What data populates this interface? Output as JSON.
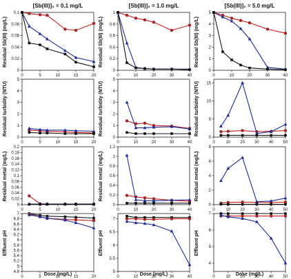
{
  "figure": {
    "column_titles": [
      "[Sb(III)]₀ = 0.1 mg/L",
      "[Sb(III)]₀ = 1.0 mg/L",
      "[Sb(III)]₀ = 5.0 mg/L"
    ],
    "row_ylabels": [
      "Residual Sb(III) (mg/L)",
      "Residual turbidity (NTU)",
      "Residual metal (mg/L)",
      "Effluent pH"
    ],
    "xlabel": "Dose (mg/L)"
  },
  "chart_data": [
    {
      "type": "line",
      "panel": "r0c0",
      "xlim": [
        0,
        20
      ],
      "ylim": [
        0,
        0.1
      ],
      "xticks": [
        0,
        5,
        10,
        15,
        20
      ],
      "yticks": [
        0,
        0.02,
        0.04,
        0.06,
        0.08,
        0.1
      ],
      "series": [
        {
          "color": "#cc1a1a",
          "marker": "circle",
          "x": [
            0,
            2,
            5,
            7,
            12,
            15,
            20
          ],
          "y": [
            0.1,
            0.098,
            0.096,
            0.095,
            0.071,
            0.069,
            0.081
          ]
        },
        {
          "color": "#1a2a99",
          "marker": "triangle",
          "x": [
            0,
            2,
            5,
            7,
            12,
            15,
            20
          ],
          "y": [
            0.1,
            0.076,
            0.063,
            0.054,
            0.034,
            0.022,
            0.015
          ]
        },
        {
          "color": "#111111",
          "marker": "square",
          "x": [
            0,
            2,
            5,
            7,
            12,
            15,
            20
          ],
          "y": [
            0.1,
            0.047,
            0.044,
            0.037,
            0.028,
            0.014,
            0.006
          ]
        }
      ]
    },
    {
      "type": "line",
      "panel": "r0c1",
      "xlim": [
        0,
        40
      ],
      "ylim": [
        0,
        1.0
      ],
      "xticks": [
        0,
        10,
        20,
        30,
        40
      ],
      "yticks": [
        0,
        0.2,
        0.4,
        0.6,
        0.8,
        1.0
      ],
      "series": [
        {
          "color": "#cc1a1a",
          "marker": "circle",
          "x": [
            0,
            5,
            10,
            15,
            20,
            30,
            40
          ],
          "y": [
            1.0,
            0.95,
            0.9,
            0.87,
            0.83,
            0.69,
            0.78
          ]
        },
        {
          "color": "#1a2a99",
          "marker": "triangle",
          "x": [
            0,
            5,
            10,
            15,
            20,
            30,
            40
          ],
          "y": [
            1.0,
            0.47,
            0.05,
            0.03,
            0.02,
            0.02,
            0.02
          ]
        },
        {
          "color": "#111111",
          "marker": "square",
          "x": [
            0,
            5,
            10,
            15,
            20,
            30,
            40
          ],
          "y": [
            1.0,
            0.13,
            0.04,
            0.03,
            0.02,
            0.02,
            0.01
          ]
        }
      ]
    },
    {
      "type": "line",
      "panel": "r0c2",
      "xlim": [
        0,
        40
      ],
      "ylim": [
        0,
        5
      ],
      "xticks": [
        0,
        10,
        20,
        30,
        40
      ],
      "yticks": [
        0,
        1,
        2,
        3,
        4,
        5
      ],
      "series": [
        {
          "color": "#cc1a1a",
          "marker": "circle",
          "x": [
            0,
            5,
            10,
            15,
            20,
            30,
            40
          ],
          "y": [
            5.0,
            4.75,
            4.5,
            4.3,
            4.1,
            3.55,
            3.2
          ]
        },
        {
          "color": "#1a2a99",
          "marker": "triangle",
          "x": [
            0,
            5,
            10,
            15,
            20,
            30,
            40
          ],
          "y": [
            5.0,
            4.6,
            4.25,
            3.6,
            2.7,
            0.25,
            0.1
          ]
        },
        {
          "color": "#111111",
          "marker": "square",
          "x": [
            0,
            5,
            10,
            15,
            20,
            30,
            40
          ],
          "y": [
            5.0,
            1.6,
            0.9,
            0.45,
            0.2,
            0.1,
            0.05
          ]
        }
      ]
    },
    {
      "type": "line",
      "panel": "r1c0",
      "xlim": [
        0,
        20
      ],
      "ylim": [
        0,
        5
      ],
      "xticks": [
        0,
        5,
        10,
        15,
        20
      ],
      "yticks": [
        0,
        1,
        2,
        3,
        4,
        5
      ],
      "series": [
        {
          "color": "#cc1a1a",
          "marker": "circle",
          "x": [
            2,
            5,
            7,
            12,
            15,
            20
          ],
          "y": [
            0.6,
            0.55,
            0.5,
            0.45,
            0.4,
            0.35
          ]
        },
        {
          "color": "#1a2a99",
          "marker": "triangle",
          "x": [
            2,
            5,
            7,
            12,
            15,
            20
          ],
          "y": [
            0.75,
            0.65,
            0.6,
            0.6,
            0.55,
            0.5
          ]
        },
        {
          "color": "#111111",
          "marker": "square",
          "x": [
            2,
            5,
            7,
            12,
            15,
            20
          ],
          "y": [
            0.4,
            0.35,
            0.35,
            0.3,
            0.3,
            0.3
          ]
        }
      ]
    },
    {
      "type": "line",
      "panel": "r1c1",
      "xlim": [
        0,
        40
      ],
      "ylim": [
        0,
        5
      ],
      "xticks": [
        0,
        10,
        20,
        30,
        40
      ],
      "yticks": [
        0,
        1,
        2,
        3,
        4,
        5
      ],
      "series": [
        {
          "color": "#cc1a1a",
          "marker": "circle",
          "x": [
            5,
            10,
            15,
            20,
            30,
            40
          ],
          "y": [
            1.4,
            1.15,
            1.2,
            1.0,
            0.95,
            0.75
          ]
        },
        {
          "color": "#1a2a99",
          "marker": "triangle",
          "x": [
            5,
            10,
            15,
            20,
            30,
            40
          ],
          "y": [
            3.0,
            0.8,
            0.8,
            0.85,
            0.9,
            0.7
          ]
        },
        {
          "color": "#111111",
          "marker": "square",
          "x": [
            5,
            10,
            15,
            20,
            30,
            40
          ],
          "y": [
            0.4,
            0.3,
            0.3,
            0.3,
            0.3,
            0.3
          ]
        }
      ]
    },
    {
      "type": "line",
      "panel": "r1c2",
      "xlim": [
        0,
        50
      ],
      "ylim": [
        0,
        16
      ],
      "xticks": [
        0,
        10,
        20,
        30,
        40,
        50
      ],
      "yticks": [
        0,
        5,
        10,
        15
      ],
      "series": [
        {
          "color": "#cc1a1a",
          "marker": "circle",
          "x": [
            5,
            10,
            20,
            30,
            40,
            50
          ],
          "y": [
            1.5,
            1.6,
            1.8,
            1.5,
            1.6,
            1.8
          ]
        },
        {
          "color": "#1a2a99",
          "marker": "triangle",
          "x": [
            5,
            10,
            20,
            30,
            40,
            50
          ],
          "y": [
            3.0,
            6.0,
            15.0,
            1.0,
            1.5,
            3.5
          ]
        },
        {
          "color": "#111111",
          "marker": "square",
          "x": [
            5,
            10,
            20,
            30,
            40,
            50
          ],
          "y": [
            0.5,
            0.5,
            0.5,
            0.5,
            0.5,
            0.5
          ]
        }
      ]
    },
    {
      "type": "line",
      "panel": "r2c0",
      "xlim": [
        0,
        20
      ],
      "ylim": [
        0,
        0.2
      ],
      "xticks": [
        0,
        5,
        10,
        15,
        20
      ],
      "yticks": [
        0,
        0.02,
        0.04,
        0.06,
        0.08,
        0.1,
        0.12,
        0.14,
        0.16,
        0.18,
        0.2
      ],
      "series": [
        {
          "color": "#cc1a1a",
          "marker": "circle",
          "x": [
            2,
            5,
            7,
            12,
            15,
            20
          ],
          "y": [
            0.03,
            0.003,
            0.002,
            0.002,
            0.002,
            0.002
          ]
        },
        {
          "color": "#1a2a99",
          "marker": "triangle",
          "x": [
            2,
            5,
            7,
            12,
            15,
            20
          ],
          "y": [
            0.002,
            0.002,
            0.002,
            0.002,
            0.002,
            0.002
          ]
        },
        {
          "color": "#111111",
          "marker": "square",
          "x": [
            2,
            5,
            7,
            12,
            15,
            20
          ],
          "y": [
            0.001,
            0.001,
            0.001,
            0.001,
            0.001,
            0.001
          ]
        }
      ]
    },
    {
      "type": "line",
      "panel": "r2c1",
      "xlim": [
        0,
        40
      ],
      "ylim": [
        0,
        1.2
      ],
      "xticks": [
        0,
        10,
        20,
        30,
        40
      ],
      "yticks": [
        0,
        0.2,
        0.4,
        0.6,
        0.8,
        1.0,
        1.2
      ],
      "series": [
        {
          "color": "#cc1a1a",
          "marker": "circle",
          "x": [
            5,
            10,
            15,
            20,
            30,
            40
          ],
          "y": [
            0.19,
            0.16,
            0.14,
            0.12,
            0.09,
            0.07
          ]
        },
        {
          "color": "#1a2a99",
          "marker": "triangle",
          "x": [
            5,
            10,
            15,
            20,
            30,
            40
          ],
          "y": [
            1.02,
            0.1,
            0.08,
            0.08,
            0.09,
            0.1
          ]
        },
        {
          "color": "#111111",
          "marker": "square",
          "x": [
            5,
            10,
            15,
            20,
            30,
            40
          ],
          "y": [
            0.03,
            0.03,
            0.03,
            0.03,
            0.03,
            0.03
          ]
        }
      ]
    },
    {
      "type": "line",
      "panel": "r2c2",
      "xlim": [
        0,
        50
      ],
      "ylim": [
        0,
        8
      ],
      "xticks": [
        0,
        10,
        20,
        30,
        40,
        50
      ],
      "yticks": [
        0,
        2,
        4,
        6,
        8
      ],
      "series": [
        {
          "color": "#cc1a1a",
          "marker": "circle",
          "x": [
            5,
            10,
            20,
            30,
            40,
            50
          ],
          "y": [
            0.2,
            0.3,
            0.35,
            0.3,
            0.3,
            0.35
          ]
        },
        {
          "color": "#1a2a99",
          "marker": "triangle",
          "x": [
            5,
            10,
            20,
            30,
            40,
            50
          ],
          "y": [
            3.3,
            5.0,
            6.5,
            0.4,
            0.5,
            0.9
          ]
        },
        {
          "color": "#111111",
          "marker": "square",
          "x": [
            5,
            10,
            20,
            30,
            40,
            50
          ],
          "y": [
            0.05,
            0.05,
            0.05,
            0.05,
            0.05,
            0.05
          ]
        }
      ]
    },
    {
      "type": "line",
      "panel": "r3c0",
      "xlim": [
        0,
        20
      ],
      "ylim": [
        4.8,
        7.0
      ],
      "xticks": [
        0,
        5,
        10,
        15,
        20
      ],
      "yticks": [
        4.8,
        5.0,
        5.2,
        5.4,
        5.6,
        5.8,
        6.0,
        6.2,
        6.4,
        6.6,
        6.8,
        7.0
      ],
      "series": [
        {
          "color": "#111111",
          "marker": "square",
          "x": [
            2,
            5,
            7,
            12,
            15,
            20
          ],
          "y": [
            7.0,
            6.93,
            6.9,
            6.88,
            6.86,
            6.83
          ]
        },
        {
          "color": "#cc1a1a",
          "marker": "circle",
          "x": [
            2,
            5,
            7,
            12,
            15,
            20
          ],
          "y": [
            6.98,
            6.88,
            6.82,
            6.78,
            6.76,
            6.73
          ]
        },
        {
          "color": "#1a2a99",
          "marker": "triangle",
          "x": [
            2,
            5,
            7,
            12,
            15,
            20
          ],
          "y": [
            6.95,
            6.88,
            6.82,
            6.75,
            6.65,
            6.45
          ]
        }
      ]
    },
    {
      "type": "line",
      "panel": "r3c1",
      "xlim": [
        0,
        40
      ],
      "ylim": [
        5.0,
        7.2
      ],
      "xticks": [
        0,
        10,
        20,
        30,
        40
      ],
      "yticks": [
        5.0,
        5.5,
        6.0,
        6.5,
        7.0
      ],
      "series": [
        {
          "color": "#111111",
          "marker": "square",
          "x": [
            5,
            10,
            15,
            20,
            30,
            40
          ],
          "y": [
            7.1,
            7.05,
            7.05,
            7.05,
            7.05,
            7.05
          ]
        },
        {
          "color": "#cc1a1a",
          "marker": "circle",
          "x": [
            5,
            10,
            15,
            20,
            30,
            40
          ],
          "y": [
            7.0,
            7.0,
            6.98,
            6.98,
            7.0,
            7.0
          ]
        },
        {
          "color": "#1a2a99",
          "marker": "triangle",
          "x": [
            5,
            10,
            15,
            20,
            30,
            40
          ],
          "y": [
            6.9,
            6.85,
            6.82,
            6.77,
            6.53,
            5.25
          ]
        }
      ]
    },
    {
      "type": "line",
      "panel": "r3c2",
      "xlim": [
        0,
        50
      ],
      "ylim": [
        3.5,
        7.0
      ],
      "xticks": [
        0,
        10,
        20,
        30,
        40,
        50
      ],
      "yticks": [
        4,
        5,
        6,
        7
      ],
      "series": [
        {
          "color": "#111111",
          "marker": "square",
          "x": [
            5,
            10,
            20,
            30,
            40,
            50
          ],
          "y": [
            7.0,
            7.0,
            7.0,
            7.0,
            7.0,
            7.0
          ]
        },
        {
          "color": "#cc1a1a",
          "marker": "circle",
          "x": [
            5,
            10,
            20,
            30,
            40,
            50
          ],
          "y": [
            6.85,
            6.85,
            6.85,
            6.85,
            6.85,
            6.85
          ]
        },
        {
          "color": "#1a2a99",
          "marker": "triangle",
          "x": [
            5,
            10,
            20,
            30,
            40,
            50
          ],
          "y": [
            6.9,
            6.8,
            6.7,
            6.5,
            5.5,
            4.0
          ]
        }
      ]
    }
  ]
}
